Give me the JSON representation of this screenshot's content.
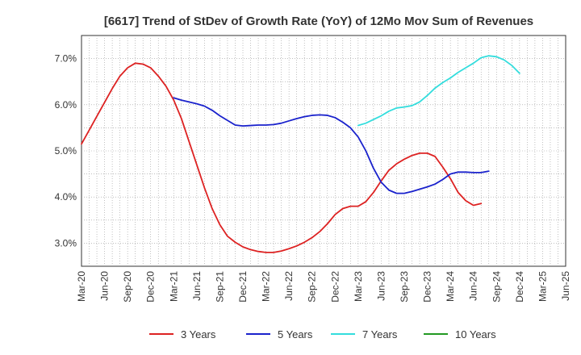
{
  "chart_data": {
    "type": "line",
    "title": "[6617]  Trend of StDev of Growth Rate (YoY) of 12Mo Mov Sum of Revenues",
    "xlabel": "",
    "ylabel": "",
    "ylim": [
      2.5,
      7.5
    ],
    "y_ticks": [
      3.0,
      4.0,
      5.0,
      6.0,
      7.0
    ],
    "y_tick_labels": [
      "3.0%",
      "4.0%",
      "5.0%",
      "6.0%",
      "7.0%"
    ],
    "x_tick_labels": [
      "Mar-20",
      "Jun-20",
      "Sep-20",
      "Dec-20",
      "Mar-21",
      "Jun-21",
      "Sep-21",
      "Dec-21",
      "Mar-22",
      "Jun-22",
      "Sep-22",
      "Dec-22",
      "Mar-23",
      "Jun-23",
      "Sep-23",
      "Dec-23",
      "Mar-24",
      "Jun-24",
      "Sep-24",
      "Dec-24",
      "Mar-25",
      "Jun-25"
    ],
    "grid": true,
    "legend_position": "bottom",
    "series": [
      {
        "name": "3 Years",
        "color": "#dd2222",
        "start_index": 0,
        "values": [
          5.15,
          5.45,
          5.75,
          6.05,
          6.35,
          6.62,
          6.8,
          6.9,
          6.88,
          6.8,
          6.62,
          6.4,
          6.1,
          5.7,
          5.2,
          4.7,
          4.2,
          3.75,
          3.4,
          3.15,
          3.02,
          2.92,
          2.86,
          2.82,
          2.8,
          2.8,
          2.83,
          2.88,
          2.94,
          3.02,
          3.12,
          3.25,
          3.42,
          3.62,
          3.75,
          3.8,
          3.8,
          3.9,
          4.1,
          4.35,
          4.58,
          4.72,
          4.82,
          4.9,
          4.95,
          4.95,
          4.88,
          4.65,
          4.4,
          4.1,
          3.92,
          3.82,
          3.86
        ]
      },
      {
        "name": "5 Years",
        "color": "#1a22cc",
        "start_index": 12,
        "values": [
          6.15,
          6.1,
          6.06,
          6.02,
          5.97,
          5.88,
          5.76,
          5.66,
          5.56,
          5.54,
          5.55,
          5.56,
          5.56,
          5.57,
          5.6,
          5.65,
          5.7,
          5.74,
          5.77,
          5.78,
          5.77,
          5.72,
          5.62,
          5.5,
          5.3,
          5.0,
          4.62,
          4.32,
          4.15,
          4.08,
          4.08,
          4.12,
          4.17,
          4.22,
          4.28,
          4.38,
          4.5,
          4.54,
          4.54,
          4.53,
          4.53,
          4.56
        ]
      },
      {
        "name": "7 Years",
        "color": "#33dddd",
        "start_index": 36,
        "values": [
          5.55,
          5.6,
          5.68,
          5.76,
          5.86,
          5.93,
          5.95,
          5.98,
          6.06,
          6.2,
          6.36,
          6.48,
          6.58,
          6.7,
          6.8,
          6.9,
          7.02,
          7.06,
          7.04,
          6.97,
          6.85,
          6.68
        ]
      },
      {
        "name": "10 Years",
        "color": "#229922",
        "start_index": 0,
        "values": []
      }
    ]
  }
}
